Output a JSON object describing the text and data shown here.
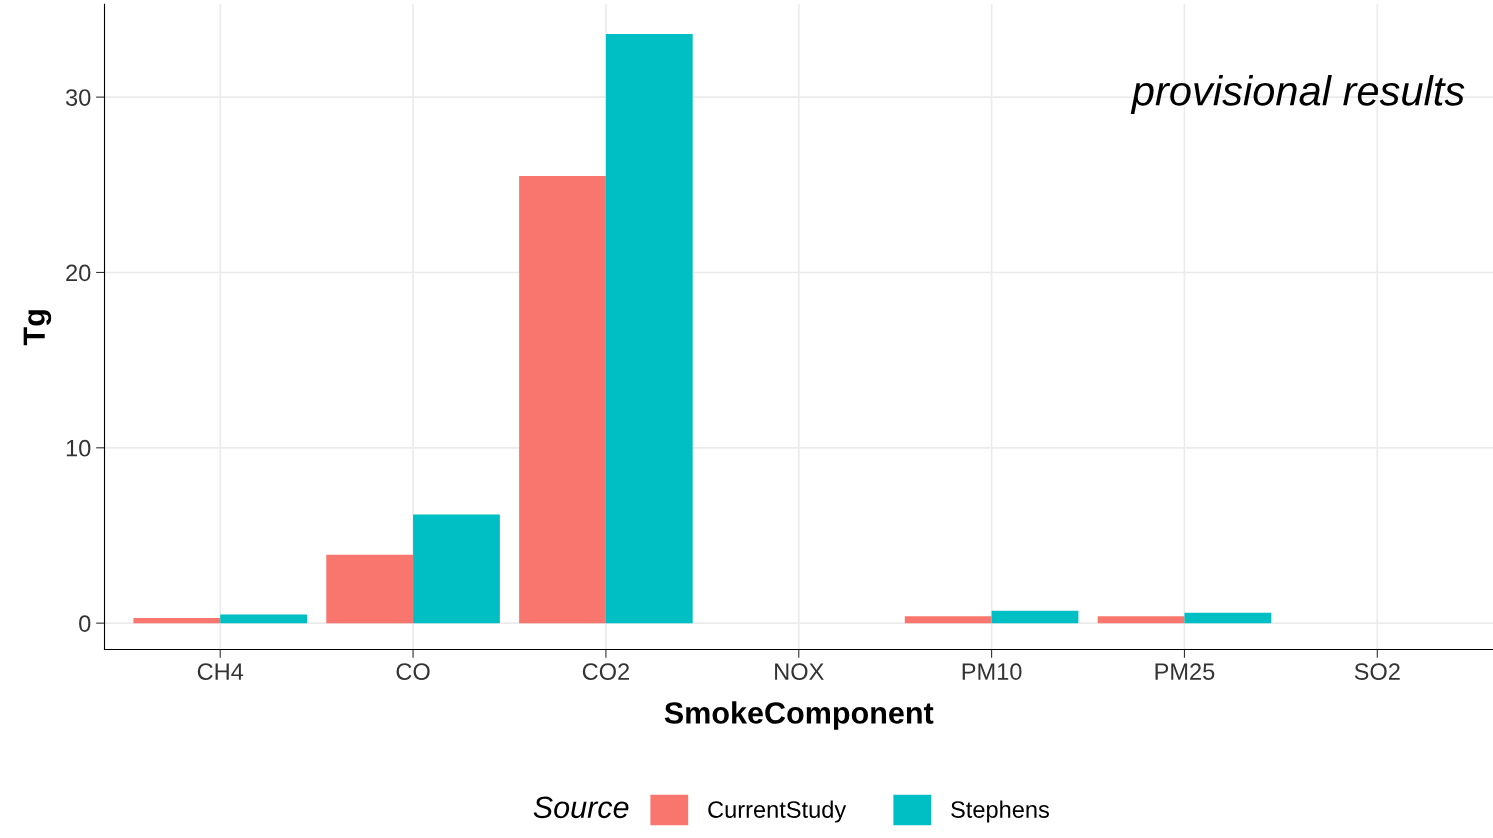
{
  "chart_data": {
    "type": "bar",
    "xlabel": "SmokeComponent",
    "ylabel": "Tg",
    "legend_title": "Source",
    "categories": [
      "CH4",
      "CO",
      "CO2",
      "NOX",
      "PM10",
      "PM25",
      "SO2"
    ],
    "series": [
      {
        "name": "CurrentStudy",
        "color": "#f8766d",
        "values": [
          0.3,
          3.9,
          25.5,
          0,
          0.4,
          0.4,
          0
        ]
      },
      {
        "name": "Stephens",
        "color": "#00bfc4",
        "values": [
          0.5,
          6.2,
          33.6,
          0,
          0.7,
          0.6,
          0
        ]
      }
    ],
    "ylim": [
      -1.5,
      35.3
    ],
    "yticks": [
      0,
      10,
      20,
      30
    ],
    "grid": true,
    "legend": "bottom",
    "annotations": [
      "provisional results"
    ]
  }
}
